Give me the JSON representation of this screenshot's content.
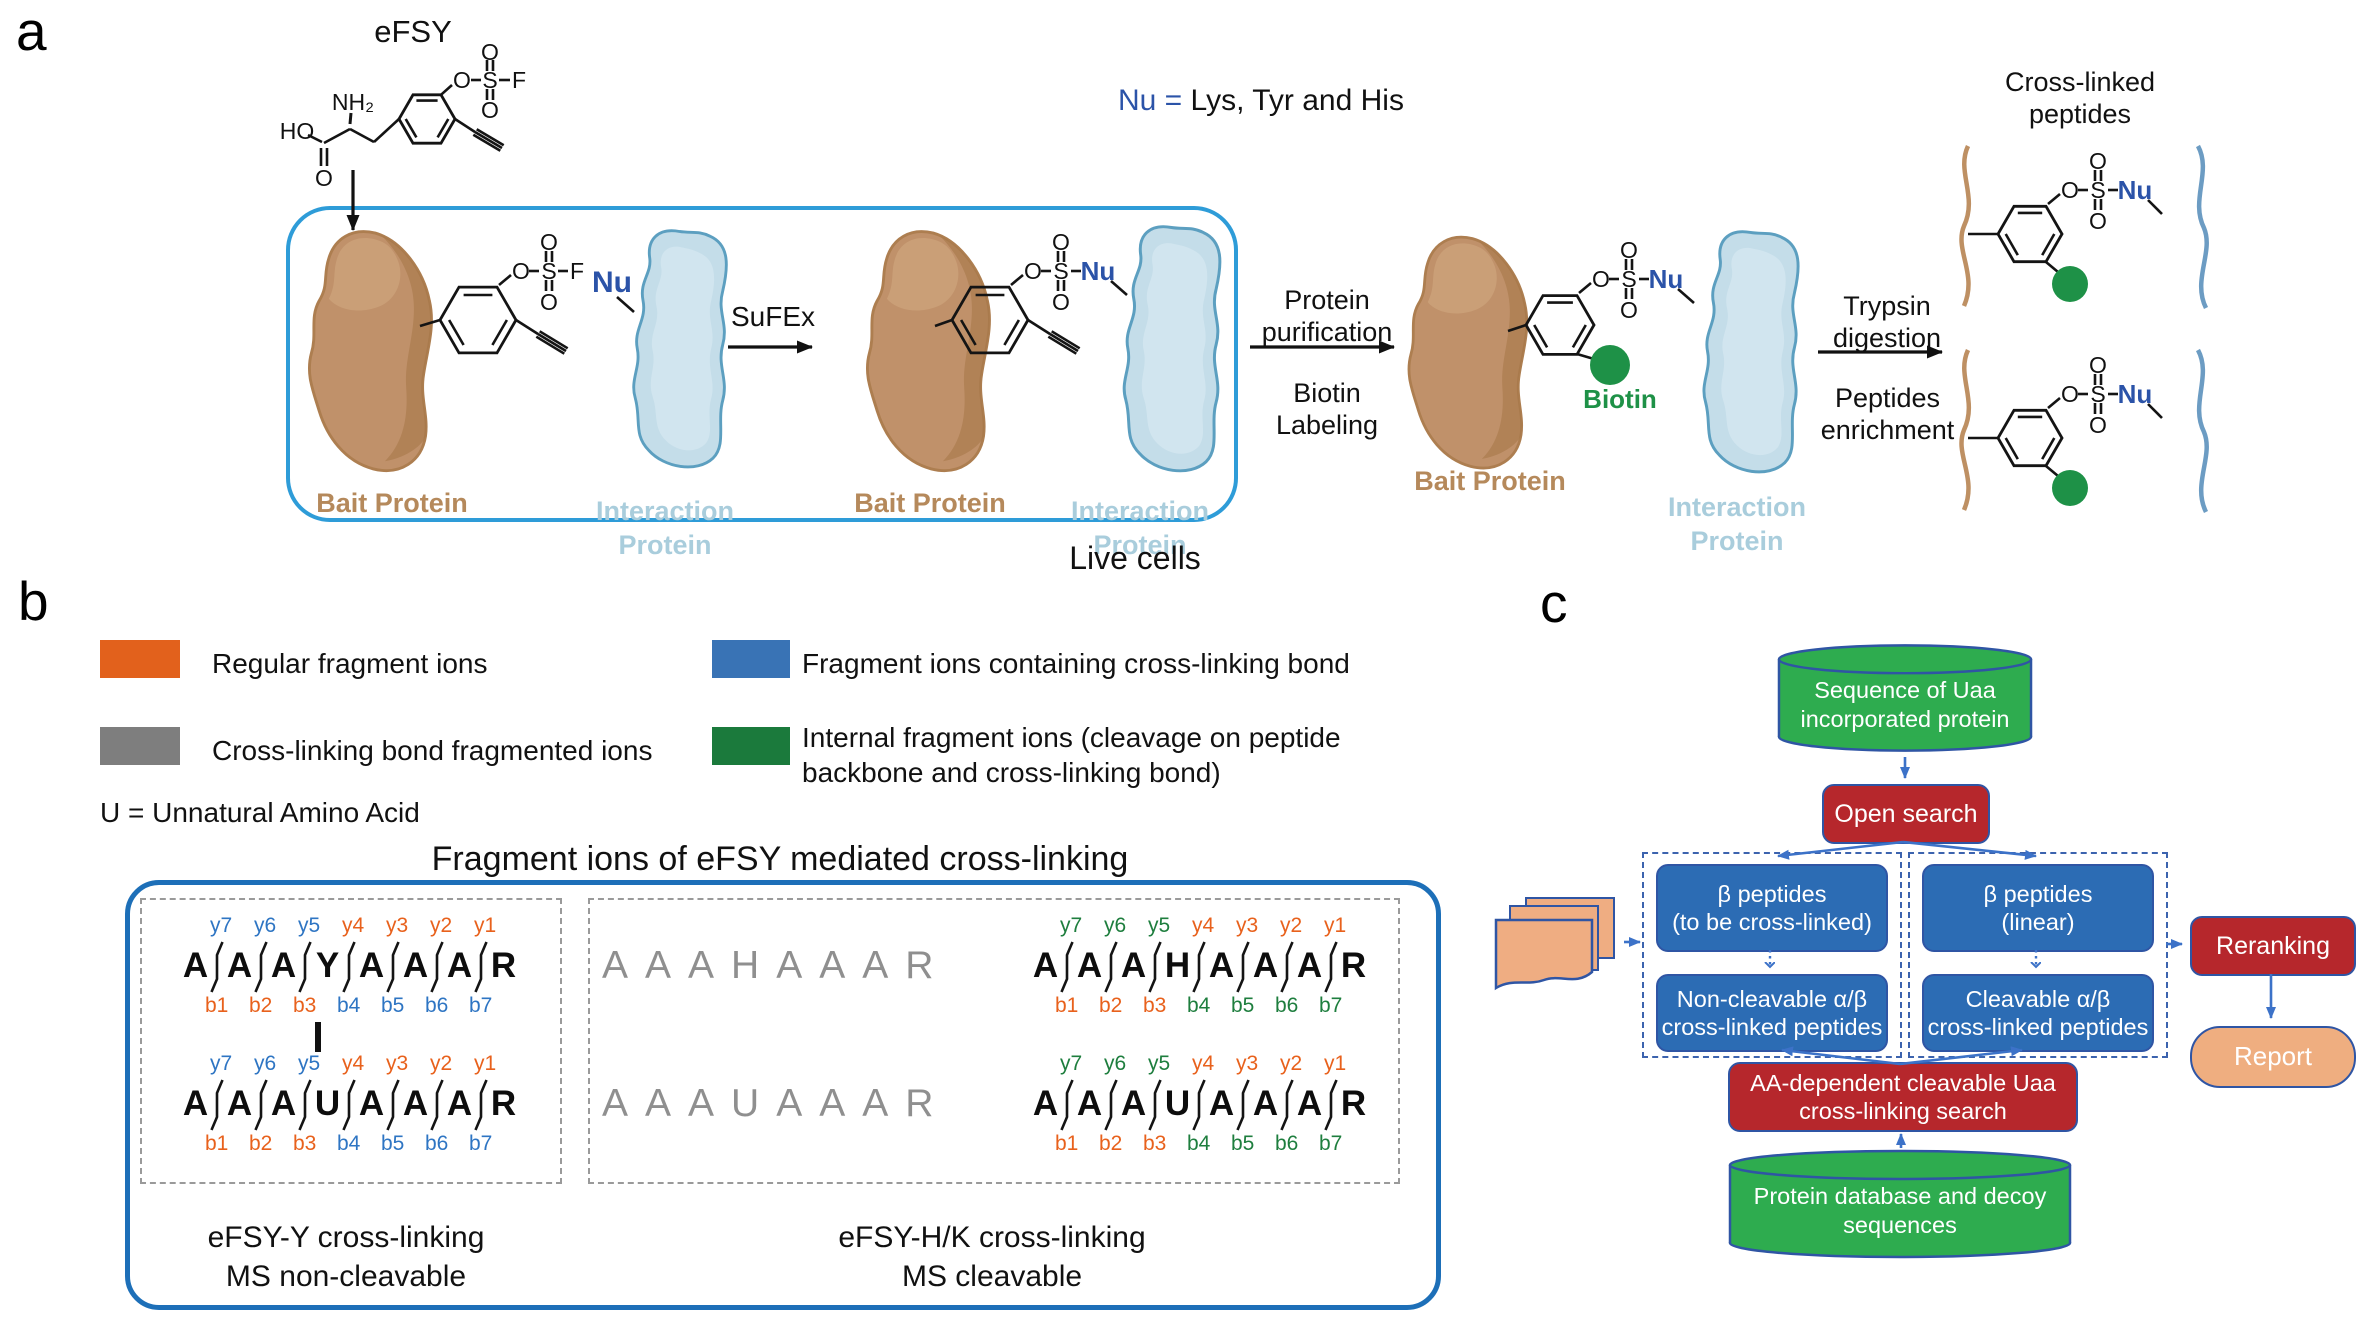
{
  "colors": {
    "ions": {
      "orange": "#E8611C",
      "blue": "#2E75C3",
      "green": "#1E7E3E",
      "gray": "#8F8F8F"
    },
    "nu_blue": "#2B53A8",
    "bait_brown": "#B5895B",
    "interaction_blue": "#A9CDDC",
    "biotin_green": "#1E9147",
    "live_cells_border": "#2E9CD8",
    "panel_b_border": "#1D6FB8",
    "flow": {
      "green": "#2EAC4F",
      "red": "#B6272C",
      "blue": "#2C6CB4",
      "peach": "#EFAE80",
      "outline": "#2F55A4",
      "arrow": "#3C72C8",
      "doc": "#EFAD82",
      "dash": "#3C63AE"
    }
  },
  "panel_a": {
    "label": "a",
    "efsy_title": "eFSY",
    "nu_prefix": "Nu =",
    "nu_rest": " Lys, Tyr and His",
    "chem": {
      "O": "O",
      "S": "S",
      "F": "F",
      "Nu": "Nu",
      "HO": "HO",
      "NH2": "NH₂"
    },
    "bait_label": "Bait Protein",
    "interaction_l1": "Interaction",
    "interaction_l2": "Protein",
    "sufex": "SuFEx",
    "live_cells": "Live cells",
    "arrow_purification_l1": "Protein",
    "arrow_purification_l2": "purification",
    "arrow_biotin_l1": "Biotin",
    "arrow_biotin_l2": "Labeling",
    "biotin": "Biotin",
    "arrow_trypsin_l1": "Trypsin",
    "arrow_trypsin_l2": "digestion",
    "arrow_peptides_l1": "Peptides",
    "arrow_peptides_l2": "enrichment",
    "crosslinked_l1": "Cross-linked",
    "crosslinked_l2": "peptides"
  },
  "panel_b": {
    "label": "b",
    "legend": [
      {
        "label": "Regular fragment ions",
        "color": "#E2611C"
      },
      {
        "label": "Fragment ions containing cross-linking bond",
        "color": "#3973B5"
      },
      {
        "label": "Cross-linking bond fragmented ions",
        "color": "#7E7E7E"
      },
      {
        "label": "Internal fragment ions (cleavage on peptide backbone and cross-linking bond)",
        "color": "#1B7A3C"
      }
    ],
    "uaa_note": "U = Unnatural Amino Acid",
    "title": "Fragment ions of eFSY mediated cross-linking",
    "left_caption_l1": "eFSY-Y cross-linking",
    "left_caption_l2": "MS non-cleavable",
    "right_caption_l1": "eFSY-H/K cross-linking",
    "right_caption_l2": "MS cleavable",
    "gray_seq_h": "AAAHAAAR",
    "gray_seq_u": "AAAUAAAR",
    "seq_y_left": {
      "residues": [
        "A",
        "A",
        "A",
        "Y",
        "A",
        "A",
        "A",
        "R"
      ],
      "y": [
        [
          "y7",
          "blue"
        ],
        [
          "y6",
          "blue"
        ],
        [
          "y5",
          "blue"
        ],
        [
          "y4",
          "orange"
        ],
        [
          "y3",
          "orange"
        ],
        [
          "y2",
          "orange"
        ],
        [
          "y1",
          "orange"
        ]
      ],
      "b": [
        [
          "b1",
          "orange"
        ],
        [
          "b2",
          "orange"
        ],
        [
          "b3",
          "orange"
        ],
        [
          "b4",
          "blue"
        ],
        [
          "b5",
          "blue"
        ],
        [
          "b6",
          "blue"
        ],
        [
          "b7",
          "blue"
        ]
      ]
    },
    "seq_u_left": {
      "residues": [
        "A",
        "A",
        "A",
        "U",
        "A",
        "A",
        "A",
        "R"
      ],
      "y": [
        [
          "y7",
          "blue"
        ],
        [
          "y6",
          "blue"
        ],
        [
          "y5",
          "blue"
        ],
        [
          "y4",
          "orange"
        ],
        [
          "y3",
          "orange"
        ],
        [
          "y2",
          "orange"
        ],
        [
          "y1",
          "orange"
        ]
      ],
      "b": [
        [
          "b1",
          "orange"
        ],
        [
          "b2",
          "orange"
        ],
        [
          "b3",
          "orange"
        ],
        [
          "b4",
          "blue"
        ],
        [
          "b5",
          "blue"
        ],
        [
          "b6",
          "blue"
        ],
        [
          "b7",
          "blue"
        ]
      ]
    },
    "seq_h_right": {
      "residues": [
        "A",
        "A",
        "A",
        "H",
        "A",
        "A",
        "A",
        "R"
      ],
      "y": [
        [
          "y7",
          "green"
        ],
        [
          "y6",
          "green"
        ],
        [
          "y5",
          "green"
        ],
        [
          "y4",
          "orange"
        ],
        [
          "y3",
          "orange"
        ],
        [
          "y2",
          "orange"
        ],
        [
          "y1",
          "orange"
        ]
      ],
      "b": [
        [
          "b1",
          "orange"
        ],
        [
          "b2",
          "orange"
        ],
        [
          "b3",
          "orange"
        ],
        [
          "b4",
          "green"
        ],
        [
          "b5",
          "green"
        ],
        [
          "b6",
          "green"
        ],
        [
          "b7",
          "green"
        ]
      ]
    },
    "seq_u_right": {
      "residues": [
        "A",
        "A",
        "A",
        "U",
        "A",
        "A",
        "A",
        "R"
      ],
      "y": [
        [
          "y7",
          "green"
        ],
        [
          "y6",
          "green"
        ],
        [
          "y5",
          "green"
        ],
        [
          "y4",
          "orange"
        ],
        [
          "y3",
          "orange"
        ],
        [
          "y2",
          "orange"
        ],
        [
          "y1",
          "orange"
        ]
      ],
      "b": [
        [
          "b1",
          "orange"
        ],
        [
          "b2",
          "orange"
        ],
        [
          "b3",
          "orange"
        ],
        [
          "b4",
          "green"
        ],
        [
          "b5",
          "green"
        ],
        [
          "b6",
          "green"
        ],
        [
          "b7",
          "green"
        ]
      ]
    }
  },
  "panel_c": {
    "label": "c",
    "db_top_l1": "Sequence of Uaa",
    "db_top_l2": "incorporated protein",
    "open_search": "Open search",
    "beta_crosslink_l1": "β peptides",
    "beta_crosslink_l2": "(to be cross-linked)",
    "beta_linear_l1": "β peptides",
    "beta_linear_l2": "(linear)",
    "noncleavable_l1": "Non-cleavable α/β",
    "noncleavable_l2": "cross-linked peptides",
    "cleavable_l1": "Cleavable α/β",
    "cleavable_l2": "cross-linked peptides",
    "aa_search_l1": "AA-dependent cleavable Uaa",
    "aa_search_l2": "cross-linking search",
    "db_bottom_l1": "Protein database and decoy",
    "db_bottom_l2": "sequences",
    "reranking": "Reranking",
    "report": "Report"
  }
}
